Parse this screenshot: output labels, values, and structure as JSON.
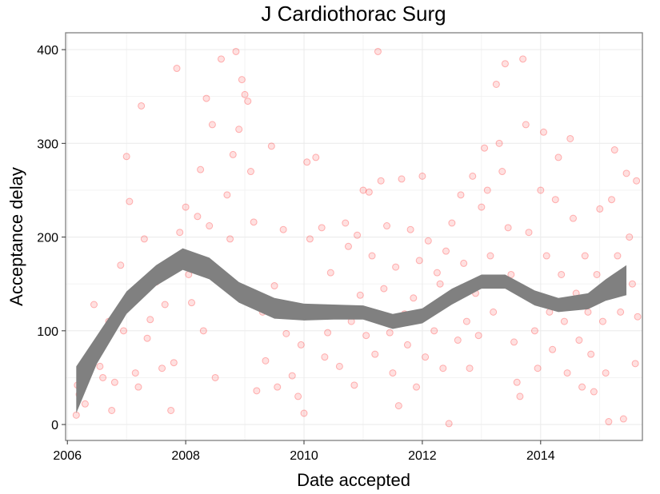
{
  "chart_data": {
    "type": "scatter",
    "title": "J Cardiothorac Surg",
    "xlabel": "Date accepted",
    "ylabel": "Acceptance delay",
    "xlim": [
      2005.97,
      2015.72
    ],
    "ylim": [
      -17,
      418
    ],
    "x_ticks": [
      2006,
      2008,
      2010,
      2012,
      2014
    ],
    "x_tick_labels": [
      "2006",
      "2008",
      "2010",
      "2012",
      "2014"
    ],
    "y_ticks": [
      0,
      100,
      200,
      300,
      400
    ],
    "y_tick_labels": [
      "0",
      "100",
      "200",
      "300",
      "400"
    ],
    "grid": true,
    "legend": "none",
    "colors": {
      "points": "#ff0000",
      "band": "#808080",
      "panel_border": "#7f7f7f",
      "grid": "#ececec"
    },
    "smooth_band": [
      {
        "x": 2006.15,
        "lower": 12,
        "upper": 62
      },
      {
        "x": 2006.5,
        "lower": 65,
        "upper": 95
      },
      {
        "x": 2007.0,
        "lower": 118,
        "upper": 142
      },
      {
        "x": 2007.5,
        "lower": 148,
        "upper": 170
      },
      {
        "x": 2007.95,
        "lower": 165,
        "upper": 188
      },
      {
        "x": 2008.4,
        "lower": 155,
        "upper": 178
      },
      {
        "x": 2008.9,
        "lower": 130,
        "upper": 152
      },
      {
        "x": 2009.5,
        "lower": 113,
        "upper": 135
      },
      {
        "x": 2010.0,
        "lower": 111,
        "upper": 129
      },
      {
        "x": 2010.5,
        "lower": 112,
        "upper": 128
      },
      {
        "x": 2011.0,
        "lower": 112,
        "upper": 127
      },
      {
        "x": 2011.5,
        "lower": 102,
        "upper": 118
      },
      {
        "x": 2012.0,
        "lower": 108,
        "upper": 124
      },
      {
        "x": 2012.5,
        "lower": 128,
        "upper": 145
      },
      {
        "x": 2013.0,
        "lower": 145,
        "upper": 160
      },
      {
        "x": 2013.4,
        "lower": 145,
        "upper": 160
      },
      {
        "x": 2013.9,
        "lower": 127,
        "upper": 143
      },
      {
        "x": 2014.3,
        "lower": 120,
        "upper": 135
      },
      {
        "x": 2014.8,
        "lower": 123,
        "upper": 140
      },
      {
        "x": 2015.1,
        "lower": 132,
        "upper": 155
      },
      {
        "x": 2015.45,
        "lower": 138,
        "upper": 170
      }
    ],
    "points": [
      {
        "x": 2006.15,
        "y": 10
      },
      {
        "x": 2006.17,
        "y": 42
      },
      {
        "x": 2006.2,
        "y": 32
      },
      {
        "x": 2006.27,
        "y": 62
      },
      {
        "x": 2006.3,
        "y": 22
      },
      {
        "x": 2006.4,
        "y": 72
      },
      {
        "x": 2006.45,
        "y": 128
      },
      {
        "x": 2006.5,
        "y": 86
      },
      {
        "x": 2006.55,
        "y": 62
      },
      {
        "x": 2006.6,
        "y": 50
      },
      {
        "x": 2006.7,
        "y": 110
      },
      {
        "x": 2006.75,
        "y": 15
      },
      {
        "x": 2006.8,
        "y": 45
      },
      {
        "x": 2006.85,
        "y": 118
      },
      {
        "x": 2006.9,
        "y": 170
      },
      {
        "x": 2006.95,
        "y": 100
      },
      {
        "x": 2007.0,
        "y": 286
      },
      {
        "x": 2007.05,
        "y": 238
      },
      {
        "x": 2007.1,
        "y": 132
      },
      {
        "x": 2007.15,
        "y": 55
      },
      {
        "x": 2007.2,
        "y": 40
      },
      {
        "x": 2007.25,
        "y": 340
      },
      {
        "x": 2007.3,
        "y": 198
      },
      {
        "x": 2007.35,
        "y": 92
      },
      {
        "x": 2007.4,
        "y": 112
      },
      {
        "x": 2007.5,
        "y": 152
      },
      {
        "x": 2007.6,
        "y": 60
      },
      {
        "x": 2007.65,
        "y": 128
      },
      {
        "x": 2007.75,
        "y": 15
      },
      {
        "x": 2007.8,
        "y": 66
      },
      {
        "x": 2007.85,
        "y": 380
      },
      {
        "x": 2007.9,
        "y": 205
      },
      {
        "x": 2008.0,
        "y": 232
      },
      {
        "x": 2008.05,
        "y": 160
      },
      {
        "x": 2008.1,
        "y": 130
      },
      {
        "x": 2008.2,
        "y": 222
      },
      {
        "x": 2008.25,
        "y": 272
      },
      {
        "x": 2008.3,
        "y": 100
      },
      {
        "x": 2008.35,
        "y": 348
      },
      {
        "x": 2008.4,
        "y": 212
      },
      {
        "x": 2008.45,
        "y": 320
      },
      {
        "x": 2008.5,
        "y": 50
      },
      {
        "x": 2008.6,
        "y": 390
      },
      {
        "x": 2008.7,
        "y": 245
      },
      {
        "x": 2008.75,
        "y": 198
      },
      {
        "x": 2008.8,
        "y": 288
      },
      {
        "x": 2008.85,
        "y": 398
      },
      {
        "x": 2008.9,
        "y": 315
      },
      {
        "x": 2008.95,
        "y": 368
      },
      {
        "x": 2009.0,
        "y": 352
      },
      {
        "x": 2009.05,
        "y": 345
      },
      {
        "x": 2009.1,
        "y": 270
      },
      {
        "x": 2009.15,
        "y": 216
      },
      {
        "x": 2009.2,
        "y": 36
      },
      {
        "x": 2009.3,
        "y": 120
      },
      {
        "x": 2009.35,
        "y": 68
      },
      {
        "x": 2009.45,
        "y": 297
      },
      {
        "x": 2009.5,
        "y": 148
      },
      {
        "x": 2009.55,
        "y": 40
      },
      {
        "x": 2009.65,
        "y": 208
      },
      {
        "x": 2009.7,
        "y": 97
      },
      {
        "x": 2009.8,
        "y": 52
      },
      {
        "x": 2009.9,
        "y": 30
      },
      {
        "x": 2009.95,
        "y": 85
      },
      {
        "x": 2010.0,
        "y": 12
      },
      {
        "x": 2010.05,
        "y": 280
      },
      {
        "x": 2010.1,
        "y": 198
      },
      {
        "x": 2010.2,
        "y": 285
      },
      {
        "x": 2010.3,
        "y": 210
      },
      {
        "x": 2010.35,
        "y": 72
      },
      {
        "x": 2010.4,
        "y": 98
      },
      {
        "x": 2010.45,
        "y": 162
      },
      {
        "x": 2010.55,
        "y": 120
      },
      {
        "x": 2010.6,
        "y": 62
      },
      {
        "x": 2010.7,
        "y": 215
      },
      {
        "x": 2010.75,
        "y": 190
      },
      {
        "x": 2010.8,
        "y": 110
      },
      {
        "x": 2010.85,
        "y": 42
      },
      {
        "x": 2010.9,
        "y": 202
      },
      {
        "x": 2010.95,
        "y": 138
      },
      {
        "x": 2011.0,
        "y": 250
      },
      {
        "x": 2011.05,
        "y": 95
      },
      {
        "x": 2011.1,
        "y": 248
      },
      {
        "x": 2011.15,
        "y": 180
      },
      {
        "x": 2011.2,
        "y": 75
      },
      {
        "x": 2011.25,
        "y": 398
      },
      {
        "x": 2011.3,
        "y": 260
      },
      {
        "x": 2011.35,
        "y": 145
      },
      {
        "x": 2011.4,
        "y": 212
      },
      {
        "x": 2011.45,
        "y": 98
      },
      {
        "x": 2011.5,
        "y": 55
      },
      {
        "x": 2011.55,
        "y": 168
      },
      {
        "x": 2011.6,
        "y": 20
      },
      {
        "x": 2011.65,
        "y": 262
      },
      {
        "x": 2011.7,
        "y": 118
      },
      {
        "x": 2011.75,
        "y": 85
      },
      {
        "x": 2011.8,
        "y": 208
      },
      {
        "x": 2011.85,
        "y": 135
      },
      {
        "x": 2011.9,
        "y": 40
      },
      {
        "x": 2011.95,
        "y": 175
      },
      {
        "x": 2012.0,
        "y": 265
      },
      {
        "x": 2012.05,
        "y": 72
      },
      {
        "x": 2012.1,
        "y": 196
      },
      {
        "x": 2012.15,
        "y": 120
      },
      {
        "x": 2012.2,
        "y": 100
      },
      {
        "x": 2012.25,
        "y": 162
      },
      {
        "x": 2012.3,
        "y": 150
      },
      {
        "x": 2012.35,
        "y": 60
      },
      {
        "x": 2012.4,
        "y": 185
      },
      {
        "x": 2012.45,
        "y": 1
      },
      {
        "x": 2012.5,
        "y": 215
      },
      {
        "x": 2012.55,
        "y": 135
      },
      {
        "x": 2012.6,
        "y": 90
      },
      {
        "x": 2012.65,
        "y": 245
      },
      {
        "x": 2012.7,
        "y": 172
      },
      {
        "x": 2012.75,
        "y": 110
      },
      {
        "x": 2012.8,
        "y": 60
      },
      {
        "x": 2012.85,
        "y": 265
      },
      {
        "x": 2012.9,
        "y": 140
      },
      {
        "x": 2012.95,
        "y": 95
      },
      {
        "x": 2013.0,
        "y": 232
      },
      {
        "x": 2013.05,
        "y": 295
      },
      {
        "x": 2013.1,
        "y": 250
      },
      {
        "x": 2013.15,
        "y": 180
      },
      {
        "x": 2013.2,
        "y": 120
      },
      {
        "x": 2013.25,
        "y": 363
      },
      {
        "x": 2013.3,
        "y": 300
      },
      {
        "x": 2013.35,
        "y": 270
      },
      {
        "x": 2013.4,
        "y": 385
      },
      {
        "x": 2013.45,
        "y": 210
      },
      {
        "x": 2013.5,
        "y": 160
      },
      {
        "x": 2013.55,
        "y": 88
      },
      {
        "x": 2013.6,
        "y": 45
      },
      {
        "x": 2013.65,
        "y": 30
      },
      {
        "x": 2013.7,
        "y": 390
      },
      {
        "x": 2013.75,
        "y": 320
      },
      {
        "x": 2013.8,
        "y": 205
      },
      {
        "x": 2013.85,
        "y": 140
      },
      {
        "x": 2013.9,
        "y": 100
      },
      {
        "x": 2013.95,
        "y": 60
      },
      {
        "x": 2014.0,
        "y": 250
      },
      {
        "x": 2014.05,
        "y": 312
      },
      {
        "x": 2014.1,
        "y": 180
      },
      {
        "x": 2014.15,
        "y": 120
      },
      {
        "x": 2014.2,
        "y": 80
      },
      {
        "x": 2014.25,
        "y": 240
      },
      {
        "x": 2014.3,
        "y": 285
      },
      {
        "x": 2014.35,
        "y": 160
      },
      {
        "x": 2014.4,
        "y": 110
      },
      {
        "x": 2014.45,
        "y": 55
      },
      {
        "x": 2014.5,
        "y": 305
      },
      {
        "x": 2014.55,
        "y": 220
      },
      {
        "x": 2014.6,
        "y": 140
      },
      {
        "x": 2014.65,
        "y": 90
      },
      {
        "x": 2014.7,
        "y": 40
      },
      {
        "x": 2014.75,
        "y": 180
      },
      {
        "x": 2014.8,
        "y": 120
      },
      {
        "x": 2014.85,
        "y": 75
      },
      {
        "x": 2014.9,
        "y": 35
      },
      {
        "x": 2014.95,
        "y": 160
      },
      {
        "x": 2015.0,
        "y": 230
      },
      {
        "x": 2015.05,
        "y": 110
      },
      {
        "x": 2015.1,
        "y": 55
      },
      {
        "x": 2015.15,
        "y": 3
      },
      {
        "x": 2015.2,
        "y": 240
      },
      {
        "x": 2015.25,
        "y": 293
      },
      {
        "x": 2015.3,
        "y": 180
      },
      {
        "x": 2015.35,
        "y": 120
      },
      {
        "x": 2015.4,
        "y": 6
      },
      {
        "x": 2015.45,
        "y": 268
      },
      {
        "x": 2015.5,
        "y": 200
      },
      {
        "x": 2015.55,
        "y": 150
      },
      {
        "x": 2015.6,
        "y": 65
      },
      {
        "x": 2015.62,
        "y": 260
      },
      {
        "x": 2015.64,
        "y": 115
      }
    ]
  }
}
